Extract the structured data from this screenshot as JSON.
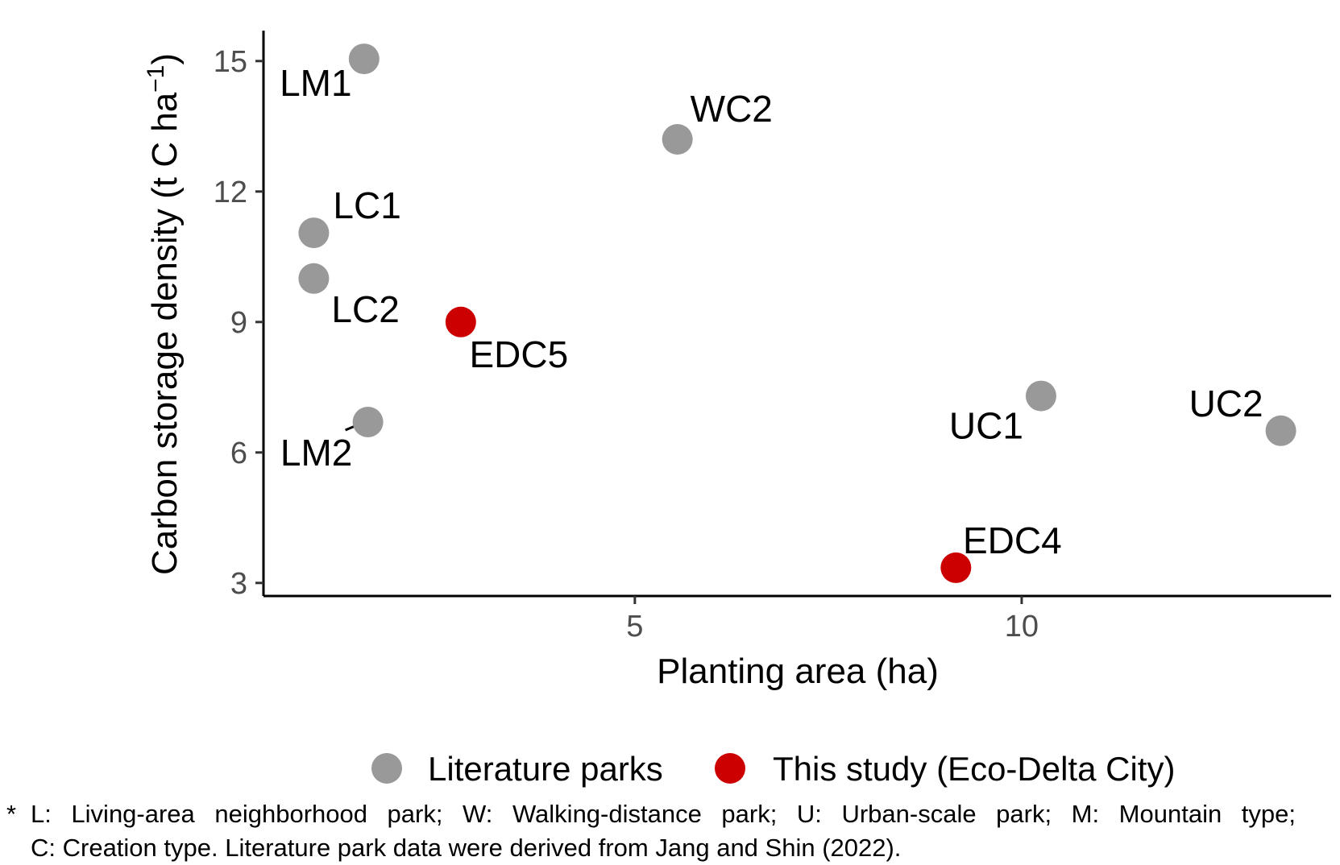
{
  "chart_data": {
    "type": "scatter",
    "xlabel": "Planting area (ha)",
    "ylabel": "Carbon storage density (t C ha",
    "ylabel_superscript": "−1",
    "ylabel_close": ")",
    "xlim": [
      0.2,
      14.0
    ],
    "ylim": [
      2.7,
      15.7
    ],
    "x_ticks": [
      5,
      10
    ],
    "y_ticks": [
      3,
      6,
      9,
      12,
      15
    ],
    "grid": false,
    "legend_position": "bottom",
    "series": [
      {
        "name": "Literature parks",
        "color": "#999999",
        "points": [
          {
            "label": "LM1",
            "x": 1.5,
            "y": 15.05
          },
          {
            "label": "WC2",
            "x": 5.55,
            "y": 13.2
          },
          {
            "label": "LC1",
            "x": 0.85,
            "y": 11.05
          },
          {
            "label": "LC2",
            "x": 0.85,
            "y": 10.0
          },
          {
            "label": "LM2",
            "x": 1.55,
            "y": 6.7
          },
          {
            "label": "UC1",
            "x": 10.25,
            "y": 7.3
          },
          {
            "label": "UC2",
            "x": 13.35,
            "y": 6.5
          }
        ]
      },
      {
        "name": "This study (Eco-Delta City)",
        "color": "#cc0000",
        "points": [
          {
            "label": "EDC5",
            "x": 2.75,
            "y": 9.0
          },
          {
            "label": "EDC4",
            "x": 9.15,
            "y": 3.35
          }
        ]
      }
    ]
  },
  "footnote": {
    "marker": "*",
    "line1": "L: Living-area neighborhood park; W: Walking-distance park; U: Urban-scale park; M: Mountain type;",
    "line2": "C: Creation type. Literature park data were derived from Jang and Shin (2022)."
  }
}
